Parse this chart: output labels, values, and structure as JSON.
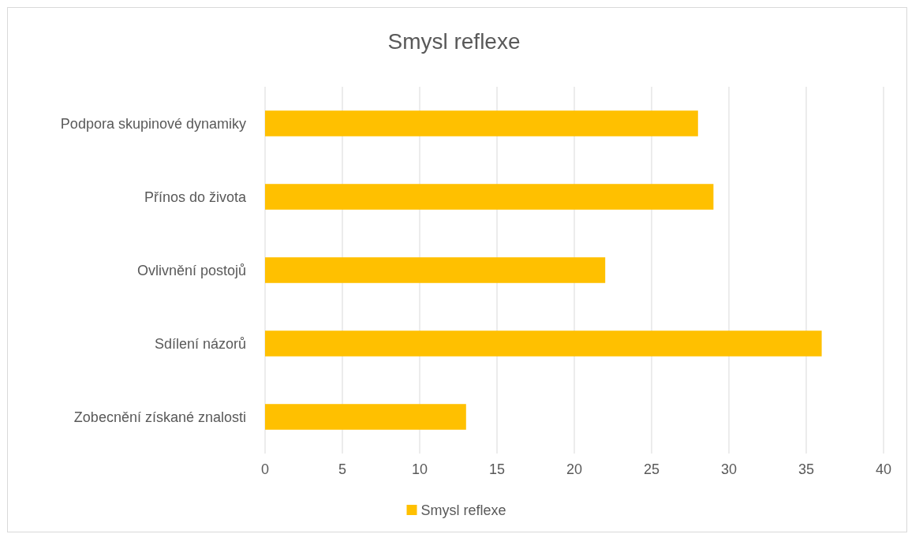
{
  "chart_data": {
    "type": "bar",
    "orientation": "horizontal",
    "title": "Smysl reflexe",
    "categories": [
      "Podpora skupinové dynamiky",
      "Přínos do života",
      "Ovlivnění postojů",
      "Sdílení názorů",
      "Zobecnění získané znalosti"
    ],
    "series": [
      {
        "name": "Smysl reflexe",
        "color": "#ffc000",
        "values": [
          28,
          29,
          22,
          36,
          13
        ]
      }
    ],
    "xlim": [
      0,
      40
    ],
    "xticks": [
      0,
      5,
      10,
      15,
      20,
      25,
      30,
      35,
      40
    ],
    "grid": "x",
    "legend": "bottom"
  }
}
